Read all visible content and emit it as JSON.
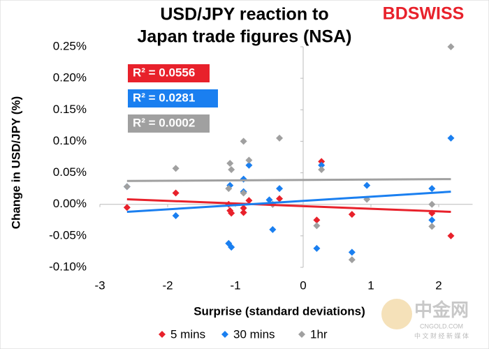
{
  "chart_data": {
    "type": "scatter",
    "title_lines": [
      "USD/JPY reaction to",
      "Japan trade figures (NSA)"
    ],
    "logo": "BDSWISS",
    "x_label": "Surprise (standard deviations)",
    "y_label": "Change in USD/JPY (%)",
    "xlim": [
      -3,
      2.5
    ],
    "xticks": [
      -3,
      -2,
      -1,
      0,
      1,
      2
    ],
    "ylim": [
      -0.1,
      0.25
    ],
    "yticks": [
      {
        "value": -0.1,
        "label": "-0.10%"
      },
      {
        "value": -0.05,
        "label": "-0.05%"
      },
      {
        "value": 0,
        "label": "0.00%"
      },
      {
        "value": 0.05,
        "label": "0.05%"
      },
      {
        "value": 0.1,
        "label": "0.10%"
      },
      {
        "value": 0.15,
        "label": "0.15%"
      },
      {
        "value": 0.2,
        "label": "0.20%"
      },
      {
        "value": 0.25,
        "label": "0.25%"
      }
    ],
    "watermark": [
      "中金网",
      "CNGOLD.COM",
      "中 文 财 经 新 媒 体"
    ],
    "series": [
      {
        "name": "5 mins",
        "color": "#e8212b",
        "r2_label": "R² = 0.0556",
        "x": [
          -2.6,
          -1.88,
          -1.1,
          -1.08,
          -1.06,
          -0.88,
          -0.88,
          -0.8,
          -0.45,
          -0.35,
          0.2,
          0.27,
          0.72,
          1.9,
          2.18
        ],
        "values": [
          -0.005,
          0.018,
          0.0,
          -0.01,
          -0.014,
          -0.013,
          -0.006,
          0.006,
          0.0,
          0.009,
          -0.025,
          0.068,
          -0.016,
          -0.014,
          -0.05
        ],
        "trend": {
          "x": [
            -2.6,
            2.18
          ],
          "y": [
            0.008,
            -0.012
          ]
        }
      },
      {
        "name": "30 mins",
        "color": "#1a7ff0",
        "r2_label": "R² = 0.0281",
        "x": [
          -2.6,
          -1.88,
          -1.1,
          -1.06,
          -1.08,
          -0.88,
          -0.88,
          -0.8,
          -0.5,
          -0.45,
          -0.35,
          0.2,
          0.27,
          0.72,
          0.94,
          1.9,
          1.9,
          2.18
        ],
        "values": [
          0.028,
          -0.018,
          -0.062,
          -0.068,
          0.03,
          0.04,
          0.02,
          0.062,
          0.007,
          -0.04,
          0.025,
          -0.07,
          0.062,
          -0.076,
          0.03,
          0.025,
          -0.025,
          0.105
        ],
        "trend": {
          "x": [
            -2.6,
            2.18
          ],
          "y": [
            -0.012,
            0.02
          ]
        }
      },
      {
        "name": "1hr",
        "color": "#a0a0a0",
        "r2_label": "R² = 0.0002",
        "x": [
          -2.6,
          -1.88,
          -1.1,
          -1.08,
          -1.06,
          -0.88,
          -0.88,
          -0.8,
          -0.45,
          -0.35,
          0.2,
          0.27,
          0.72,
          0.94,
          1.9,
          1.9,
          2.18
        ],
        "values": [
          0.028,
          0.057,
          0.025,
          0.065,
          0.055,
          0.1,
          0.018,
          0.07,
          0.0,
          0.105,
          -0.034,
          0.055,
          -0.088,
          0.008,
          0.0,
          -0.035,
          0.25
        ],
        "trend": {
          "x": [
            -2.6,
            2.18
          ],
          "y": [
            0.037,
            0.04
          ]
        }
      }
    ]
  }
}
